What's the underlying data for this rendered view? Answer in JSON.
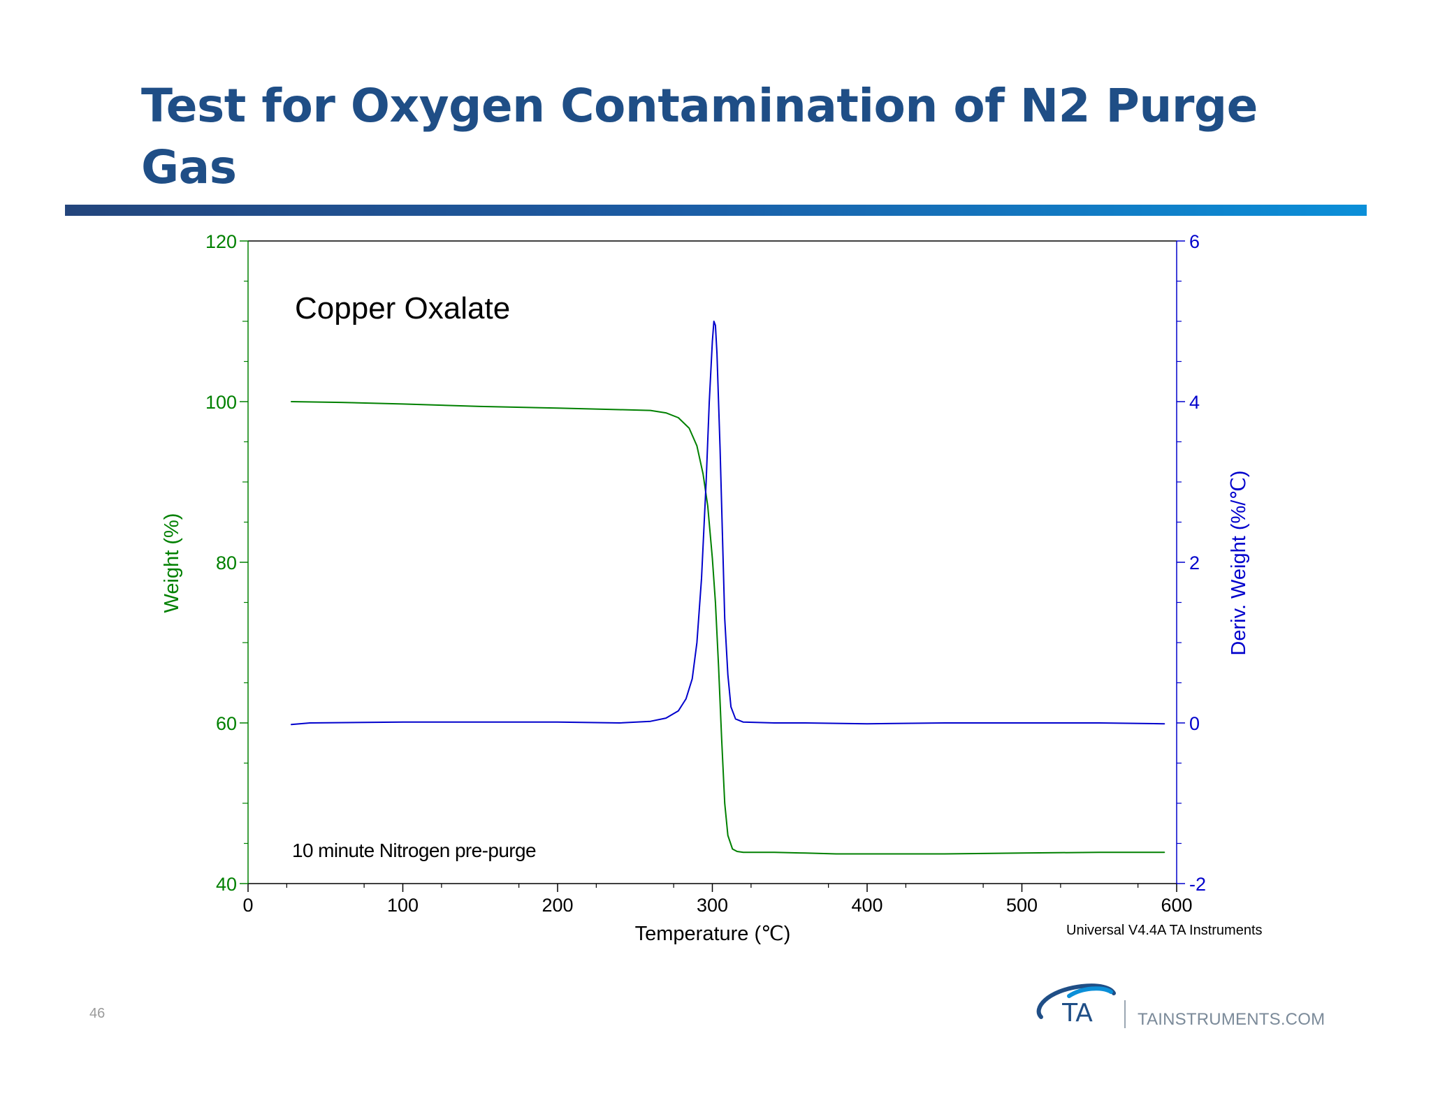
{
  "slide": {
    "title": "Test for Oxygen Contamination of N2 Purge Gas",
    "page_number": "46",
    "footer_url": "TAINSTRUMENTS.COM",
    "logo_text": "TA",
    "title_color": "#1f4e86"
  },
  "chart_data": {
    "type": "line",
    "sample_label": "Copper Oxalate",
    "annotation": "10 minute Nitrogen pre-purge",
    "software_label": "Universal V4.4A TA Instruments",
    "xlabel": "Temperature (℃)",
    "xlim": [
      0,
      600
    ],
    "x_ticks": [
      "0",
      "100",
      "200",
      "300",
      "400",
      "500",
      "600"
    ],
    "y_left": {
      "label": "Weight (%)",
      "lim": [
        40,
        120
      ],
      "ticks": [
        "40",
        "60",
        "80",
        "100",
        "120"
      ],
      "color": "#008000"
    },
    "y_right": {
      "label": "Deriv. Weight (%/℃)",
      "lim": [
        -2,
        6
      ],
      "ticks": [
        "-2",
        "0",
        "2",
        "4",
        "6"
      ],
      "color": "#0000cc"
    },
    "grid": false,
    "series": [
      {
        "axis": "left",
        "color": "#008000",
        "x": [
          28,
          60,
          100,
          150,
          200,
          240,
          260,
          270,
          278,
          285,
          290,
          294,
          297,
          300,
          302,
          304,
          306,
          308,
          310,
          313,
          316,
          320,
          340,
          360,
          380,
          400,
          450,
          500,
          550,
          592
        ],
        "y": [
          100,
          99.9,
          99.7,
          99.4,
          99.2,
          99.0,
          98.9,
          98.6,
          98.0,
          96.7,
          94.5,
          91.0,
          87.0,
          80.5,
          75.0,
          67.0,
          58.0,
          50.0,
          46.0,
          44.3,
          44.0,
          43.9,
          43.9,
          43.8,
          43.7,
          43.7,
          43.7,
          43.8,
          43.9,
          43.9
        ]
      },
      {
        "axis": "right",
        "color": "#0000cc",
        "x": [
          28,
          40,
          100,
          150,
          200,
          240,
          260,
          270,
          278,
          283,
          287,
          290,
          293,
          296,
          298,
          300,
          301,
          302,
          303,
          305,
          307,
          308,
          310,
          312,
          315,
          320,
          340,
          360,
          400,
          450,
          500,
          550,
          592
        ],
        "y": [
          -0.02,
          0.0,
          0.01,
          0.01,
          0.01,
          0.0,
          0.02,
          0.06,
          0.15,
          0.3,
          0.55,
          1.0,
          1.8,
          3.0,
          4.0,
          4.75,
          5.0,
          4.95,
          4.6,
          3.4,
          2.0,
          1.3,
          0.6,
          0.2,
          0.05,
          0.01,
          0.0,
          0.0,
          -0.01,
          0.0,
          0.0,
          0.0,
          -0.01
        ]
      }
    ]
  }
}
